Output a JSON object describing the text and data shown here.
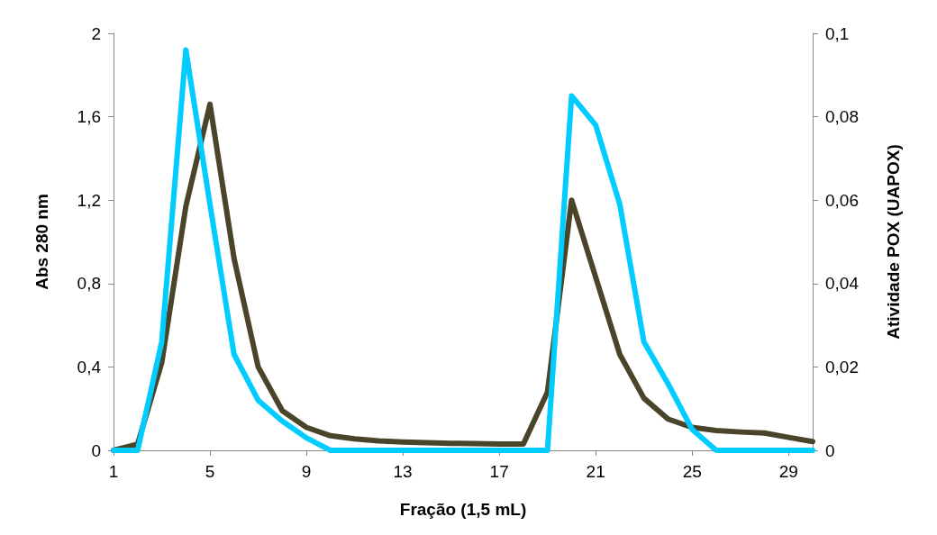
{
  "chart_data": {
    "type": "line",
    "xlabel": "Fração (1,5 mL)",
    "ylabel": "Abs 280 nm",
    "y2label": "Atividade POX (UAPOX)",
    "categories": [
      "1",
      null,
      null,
      null,
      "5",
      null,
      null,
      null,
      "9",
      null,
      null,
      null,
      "13",
      null,
      null,
      null,
      "17",
      null,
      null,
      null,
      "21",
      null,
      null,
      null,
      "25",
      null,
      null,
      null,
      "29",
      null
    ],
    "series": [
      {
        "color": "#4a452a",
        "values": [
          0,
          0.03,
          0.42,
          1.17,
          1.66,
          0.92,
          0.4,
          0.19,
          0.11,
          0.07,
          0.055,
          0.045,
          0.04,
          0.037,
          0.034,
          0.032,
          0.03,
          0.03,
          0.28,
          1.2,
          0.83,
          0.46,
          0.25,
          0.15,
          0.11,
          0.095,
          0.088,
          0.083,
          0.062,
          0.042
        ]
      },
      {
        "color": "#00ccff",
        "axis": "y2",
        "values": [
          0,
          0,
          0.026,
          0.096,
          0.059,
          0.023,
          0.012,
          0.007,
          0.003,
          0,
          0,
          0,
          0,
          0,
          0,
          0,
          0,
          0,
          0,
          0.085,
          0.078,
          0.059,
          0.026,
          0.016,
          0.005,
          0,
          0,
          0,
          0,
          0
        ]
      }
    ],
    "ylim": [
      0,
      2
    ],
    "yticks": [
      0,
      {
        "value": 0.4,
        "label": "0,4"
      },
      {
        "value": 0.8,
        "label": "0,8"
      },
      {
        "value": 1.2,
        "label": "1,2"
      },
      {
        "value": 1.6,
        "label": "1,6"
      },
      2
    ],
    "y2lim": [
      0,
      0.1
    ],
    "y2ticks": [
      0,
      {
        "value": 0.02,
        "label": "0,02"
      },
      {
        "value": 0.04,
        "label": "0,04"
      },
      {
        "value": 0.06,
        "label": "0,06"
      },
      {
        "value": 0.08,
        "label": "0,08"
      },
      {
        "value": 0.1,
        "label": "0,1"
      }
    ],
    "grid": false,
    "marker": "none",
    "line_style": "solid"
  }
}
